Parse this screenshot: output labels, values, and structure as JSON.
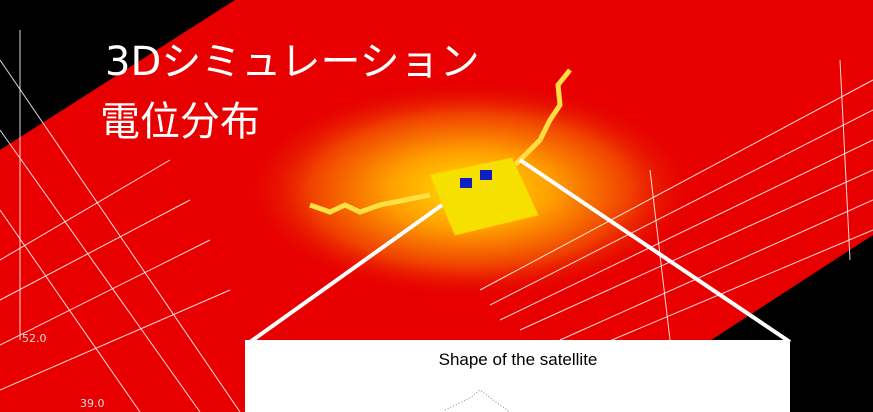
{
  "title": "3Dシミュレーション",
  "subtitle": "電位分布",
  "axis_labels": [
    "52.0",
    "39.0"
  ],
  "inset": {
    "caption": "Shape of the satellite"
  }
}
